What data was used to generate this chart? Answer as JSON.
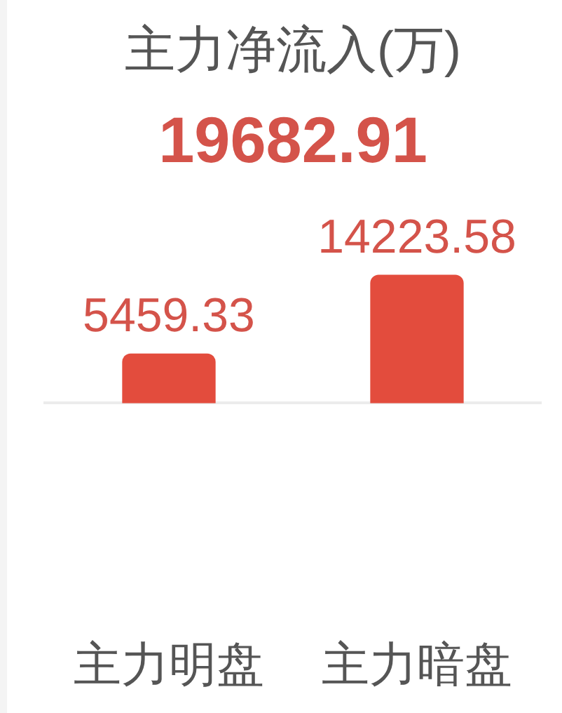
{
  "chart_data": {
    "type": "bar",
    "title": "主力净流入(万)",
    "subtitle": "19682.91",
    "categories": [
      "主力明盘",
      "主力暗盘"
    ],
    "values": [
      5459.33,
      14223.58
    ],
    "color": "#e34c3d",
    "data_labels": true,
    "tick_labels": "x"
  }
}
